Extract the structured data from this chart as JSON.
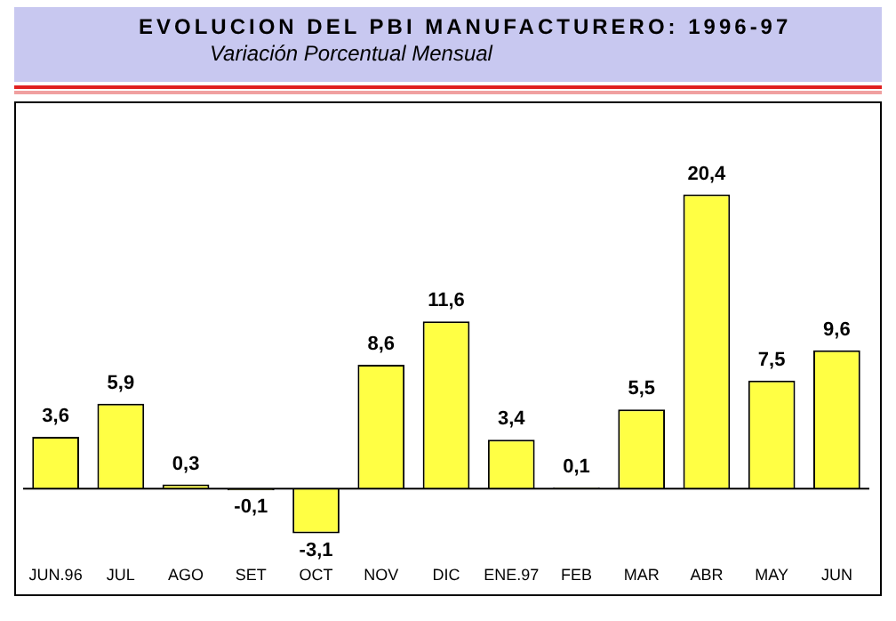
{
  "chart_data": {
    "type": "bar",
    "title": "EVOLUCION DEL PBI MANUFACTURERO: 1996-97",
    "subtitle": "Variación Porcentual Mensual",
    "categories": [
      "JUN.96",
      "JUL",
      "AGO",
      "SET",
      "OCT",
      "NOV",
      "DIC",
      "ENE.97",
      "FEB",
      "MAR",
      "ABR",
      "MAY",
      "JUN"
    ],
    "values": [
      3.6,
      5.9,
      0.3,
      -0.1,
      -3.1,
      8.6,
      11.6,
      3.4,
      0.1,
      5.5,
      20.4,
      7.5,
      9.6
    ],
    "value_labels": [
      "3,6",
      "5,9",
      "0,3",
      "-0,1",
      "-3,1",
      "8,6",
      "11,6",
      "3,4",
      "0,1",
      "5,5",
      "20,4",
      "7,5",
      "9,6"
    ],
    "color": "#ffff44",
    "grid": false,
    "legend": false
  }
}
